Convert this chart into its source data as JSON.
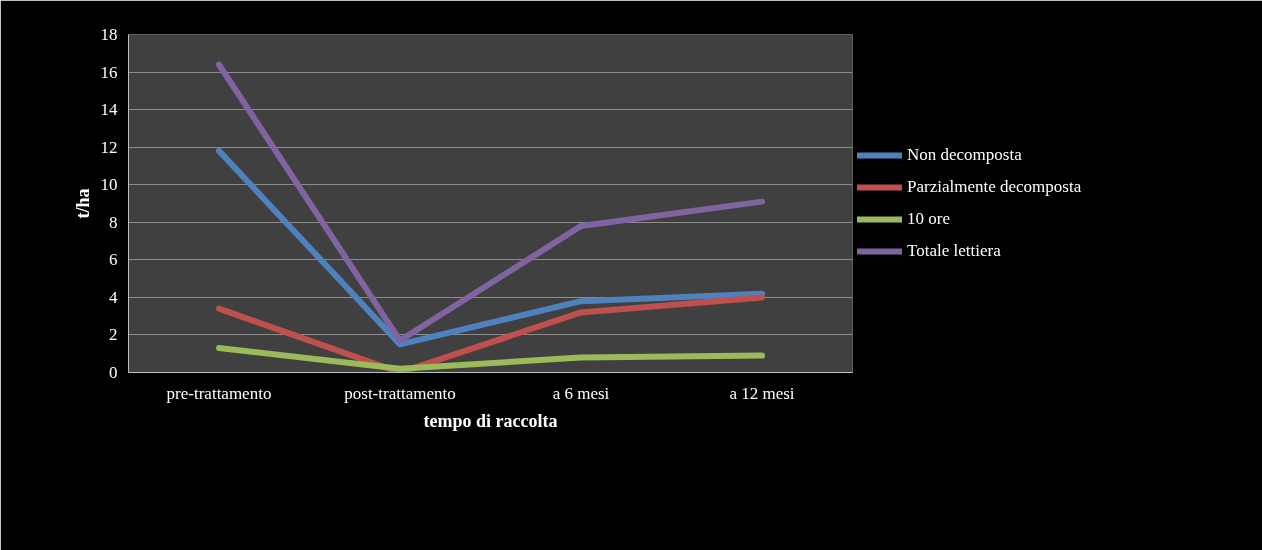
{
  "chart_data": {
    "type": "line",
    "xlabel": "tempo di raccolta",
    "ylabel": "t/ha",
    "categories": [
      "pre-trattamento",
      "post-trattamento",
      "a 6 mesi",
      "a 12 mesi"
    ],
    "series": [
      {
        "name": "Non decomposta",
        "color": "#4f81bd",
        "values": [
          11.8,
          1.5,
          3.8,
          4.2
        ]
      },
      {
        "name": "Parzialmente decomposta",
        "color": "#c0504d",
        "values": [
          3.4,
          0.0,
          3.2,
          4.0
        ]
      },
      {
        "name": "10 ore",
        "color": "#9bbb59",
        "values": [
          1.3,
          0.2,
          0.8,
          0.9
        ]
      },
      {
        "name": "Totale lettiera",
        "color": "#8064a2",
        "values": [
          16.4,
          1.7,
          7.8,
          9.1
        ]
      }
    ],
    "ylim": [
      0,
      18
    ],
    "yticks": [
      0,
      2,
      4,
      6,
      8,
      10,
      12,
      14,
      16,
      18
    ],
    "grid": "y",
    "legend": "right",
    "marker": "none",
    "line_style": "solid"
  }
}
